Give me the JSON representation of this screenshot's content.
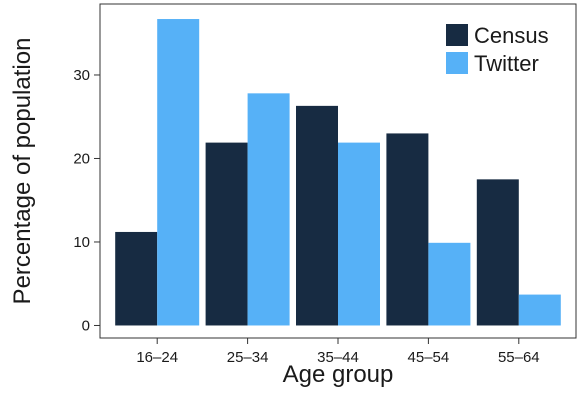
{
  "chart_data": {
    "type": "bar",
    "title": "",
    "xlabel": "Age group",
    "ylabel": "Percentage of population",
    "categories": [
      "16–24",
      "25–34",
      "35–44",
      "45–54",
      "55–64"
    ],
    "series": [
      {
        "name": "Census",
        "color": "#172b42",
        "values": [
          11.2,
          21.9,
          26.3,
          23.0,
          17.5
        ]
      },
      {
        "name": "Twitter",
        "color": "#56b1f7",
        "values": [
          36.7,
          27.8,
          21.9,
          9.9,
          3.7
        ]
      }
    ],
    "yticks": [
      0,
      10,
      20,
      30
    ],
    "ylim": [
      -1.5,
      38.5
    ],
    "grid": false,
    "legend_position": "top-right"
  }
}
